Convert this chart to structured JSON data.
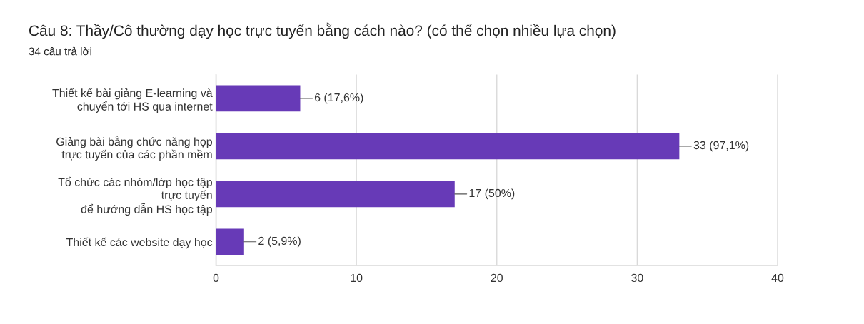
{
  "chart_data": {
    "type": "bar",
    "orientation": "horizontal",
    "title": "Câu 8: Thầy/Cô thường dạy học trực tuyến bằng cách nào? (có thể chọn nhiều lựa chọn)",
    "subtitle": "34 câu trả lời",
    "categories": [
      "Thiết kế bài giảng E-learning và\nchuyển tới HS qua internet",
      "Giảng bài bằng chức năng họp\ntrực tuyến của các phần mềm",
      "Tổ chức các nhóm/lớp học tập\ntrực tuyến\nđể hướng dẫn HS học tập",
      "Thiết kế các website dạy học"
    ],
    "values": [
      6,
      33,
      17,
      2
    ],
    "value_labels": [
      "6 (17,6%)",
      "33 (97,1%)",
      "17 (50%)",
      "2 (5,9%)"
    ],
    "color": "#673ab7",
    "xlim": [
      0,
      40
    ],
    "xticks": [
      0,
      10,
      20,
      30,
      40
    ],
    "grid": "x"
  }
}
